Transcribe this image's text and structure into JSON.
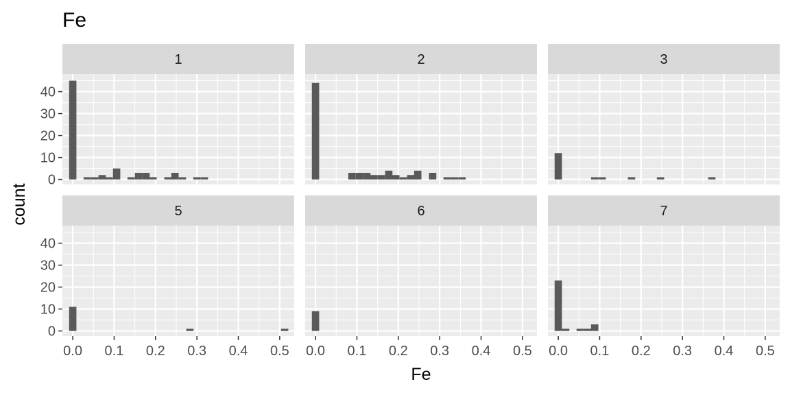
{
  "chart_data": {
    "type": "bar",
    "title": "Fe",
    "xlabel": "Fe",
    "ylabel": "count",
    "xlim": [
      -0.025,
      0.535
    ],
    "ylim": [
      -2.3,
      48
    ],
    "x_ticks": [
      0.0,
      0.1,
      0.2,
      0.3,
      0.4,
      0.5
    ],
    "x_tick_labels": [
      "0.0",
      "0.1",
      "0.2",
      "0.3",
      "0.4",
      "0.5"
    ],
    "y_ticks": [
      0,
      10,
      20,
      30,
      40
    ],
    "y_tick_labels": [
      "0",
      "10",
      "20",
      "30",
      "40"
    ],
    "bin_width": 0.0177,
    "grid": true,
    "colors": {
      "bar": "#595959",
      "panel": "#ebebeb",
      "strip": "#d9d9d9",
      "grid": "#ffffff"
    },
    "facets": [
      {
        "label": "1",
        "bars": [
          {
            "x": 0.0,
            "count": 45
          },
          {
            "x": 0.035,
            "count": 1
          },
          {
            "x": 0.053,
            "count": 1
          },
          {
            "x": 0.071,
            "count": 2
          },
          {
            "x": 0.088,
            "count": 1
          },
          {
            "x": 0.106,
            "count": 5
          },
          {
            "x": 0.141,
            "count": 1
          },
          {
            "x": 0.159,
            "count": 3
          },
          {
            "x": 0.177,
            "count": 3
          },
          {
            "x": 0.194,
            "count": 1
          },
          {
            "x": 0.23,
            "count": 1
          },
          {
            "x": 0.247,
            "count": 3
          },
          {
            "x": 0.265,
            "count": 1
          },
          {
            "x": 0.3,
            "count": 1
          },
          {
            "x": 0.318,
            "count": 1
          }
        ]
      },
      {
        "label": "2",
        "bars": [
          {
            "x": 0.0,
            "count": 44
          },
          {
            "x": 0.088,
            "count": 3
          },
          {
            "x": 0.106,
            "count": 3
          },
          {
            "x": 0.124,
            "count": 3
          },
          {
            "x": 0.141,
            "count": 2
          },
          {
            "x": 0.159,
            "count": 2
          },
          {
            "x": 0.177,
            "count": 4
          },
          {
            "x": 0.194,
            "count": 2
          },
          {
            "x": 0.212,
            "count": 1
          },
          {
            "x": 0.23,
            "count": 2
          },
          {
            "x": 0.247,
            "count": 4
          },
          {
            "x": 0.283,
            "count": 3
          },
          {
            "x": 0.318,
            "count": 1
          },
          {
            "x": 0.336,
            "count": 1
          },
          {
            "x": 0.354,
            "count": 1
          }
        ]
      },
      {
        "label": "3",
        "bars": [
          {
            "x": 0.0,
            "count": 12
          },
          {
            "x": 0.088,
            "count": 1
          },
          {
            "x": 0.106,
            "count": 1
          },
          {
            "x": 0.177,
            "count": 1
          },
          {
            "x": 0.247,
            "count": 1
          },
          {
            "x": 0.371,
            "count": 1
          }
        ]
      },
      {
        "label": "5",
        "bars": [
          {
            "x": 0.0,
            "count": 11
          },
          {
            "x": 0.283,
            "count": 1
          },
          {
            "x": 0.512,
            "count": 1
          }
        ]
      },
      {
        "label": "6",
        "bars": [
          {
            "x": 0.0,
            "count": 9
          }
        ]
      },
      {
        "label": "7",
        "bars": [
          {
            "x": 0.0,
            "count": 23
          },
          {
            "x": 0.018,
            "count": 1
          },
          {
            "x": 0.053,
            "count": 1
          },
          {
            "x": 0.071,
            "count": 1
          },
          {
            "x": 0.088,
            "count": 3
          }
        ]
      }
    ]
  }
}
